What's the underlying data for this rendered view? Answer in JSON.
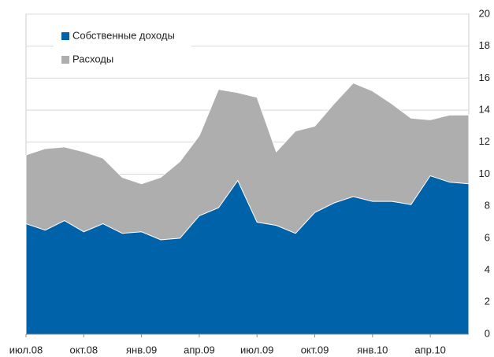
{
  "chart_data": {
    "type": "area",
    "categories": [
      "июл.08",
      null,
      null,
      "окт.08",
      null,
      null,
      "янв.09",
      null,
      null,
      "апр.09",
      null,
      null,
      "июл.09",
      null,
      null,
      "окт.09",
      null,
      null,
      "янв.10",
      null,
      null,
      "апр.10",
      null,
      null
    ],
    "series": [
      {
        "name": "Собственные доходы",
        "color": "#0062a8",
        "values": [
          6.9,
          6.5,
          7.1,
          6.4,
          6.9,
          6.3,
          6.4,
          5.9,
          6.0,
          7.4,
          7.9,
          9.6,
          7.0,
          6.8,
          6.3,
          7.6,
          8.2,
          8.6,
          8.3,
          8.3,
          8.1,
          9.9,
          9.5,
          9.4
        ]
      },
      {
        "name": "Расходы",
        "color": "#aeaeae",
        "values": [
          11.2,
          11.6,
          11.7,
          11.4,
          11.0,
          9.8,
          9.4,
          9.8,
          10.8,
          12.4,
          15.3,
          15.1,
          14.8,
          11.4,
          12.7,
          13.0,
          14.4,
          15.7,
          15.2,
          14.4,
          13.5,
          13.4,
          13.7,
          13.7
        ]
      }
    ],
    "ylim": [
      0,
      20
    ],
    "yticks": [
      0,
      2,
      4,
      6,
      8,
      10,
      12,
      14,
      16,
      18,
      20
    ],
    "grid": true,
    "legend": "top-left"
  }
}
